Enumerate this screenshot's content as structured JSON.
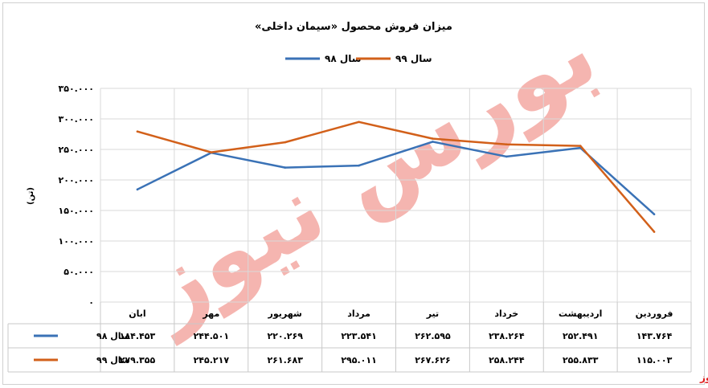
{
  "chart_data": {
    "type": "line",
    "title": "میزان فروش محصول «سیمان داخلی»",
    "ylabel": "(تن)",
    "xlabel": "",
    "ylim": [
      0,
      350000
    ],
    "y_tick_labels": [
      "۳۵۰.۰۰۰",
      "۳۰۰.۰۰۰",
      "۲۵۰.۰۰۰",
      "۲۰۰.۰۰۰",
      "۱۵۰.۰۰۰",
      "۱۰۰.۰۰۰",
      "۵۰.۰۰۰",
      "۰"
    ],
    "grid": true,
    "legend_position": "top",
    "categories": [
      "فروردین",
      "اردیبهشت",
      "خرداد",
      "تیر",
      "مرداد",
      "شهریور",
      "مهر",
      "ابان"
    ],
    "series": [
      {
        "name": "سال ۹۸",
        "color": "#3a72b6",
        "values": [
          143764,
          252491,
          238264,
          262595,
          223541,
          220269,
          244501,
          184453
        ],
        "labels": [
          "۱۴۳.۷۶۴",
          "۲۵۲.۴۹۱",
          "۲۳۸.۲۶۴",
          "۲۶۲.۵۹۵",
          "۲۲۳.۵۴۱",
          "۲۲۰.۲۶۹",
          "۲۴۴.۵۰۱",
          "۱۸۴.۴۵۳"
        ]
      },
      {
        "name": "سال ۹۹",
        "color": "#d2601a",
        "values": [
          115003,
          255833,
          258244,
          267626,
          295011,
          261683,
          245217,
          279355
        ],
        "labels": [
          "۱۱۵.۰۰۳",
          "۲۵۵.۸۳۳",
          "۲۵۸.۲۴۴",
          "۲۶۷.۶۲۶",
          "۲۹۵.۰۱۱",
          "۲۶۱.۶۸۳",
          "۲۴۵.۲۱۷",
          "۲۷۹.۳۵۵"
        ]
      }
    ]
  },
  "watermark": {
    "text": "بورس نیوز",
    "color": "#ec6e63"
  },
  "brand": {
    "text": "بورس نیوز",
    "color": "#e02020"
  }
}
